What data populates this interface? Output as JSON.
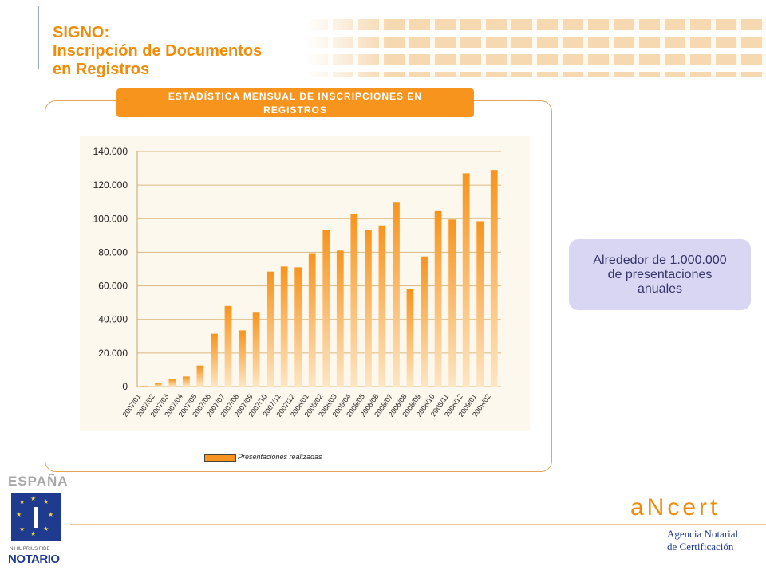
{
  "slide": {
    "title_line1": "SIGNO:",
    "title_line2": "Inscripción de Documentos",
    "title_line3": "en Registros"
  },
  "panel": {
    "header_line1": "ESTADÍSTICA MENSUAL DE INSCRIPCIONES EN",
    "header_line2": "REGISTROS"
  },
  "callout": {
    "line1": "Alrededor de 1.000.000",
    "line2": "de presentaciones",
    "line3": "anuales"
  },
  "logos": {
    "left_country": "ESPAÑA",
    "left_motto": "NIHIL PRIUS FIDE",
    "left_name": "NOTARIO",
    "right_brand": "aNcert",
    "right_tag1": "Agencia Notarial",
    "right_tag2": "de Certificación"
  },
  "colors": {
    "accent": "#f7941d",
    "title": "#f08c0a",
    "callout_bg": "#d9d6f4"
  },
  "chart_data": {
    "type": "bar",
    "title": "",
    "xlabel": "",
    "ylabel": "",
    "ylim": [
      0,
      140000
    ],
    "yticks": [
      0,
      20000,
      40000,
      60000,
      80000,
      100000,
      120000,
      140000
    ],
    "ytick_labels": [
      "0",
      "20.000",
      "40.000",
      "60.000",
      "80.000",
      "100.000",
      "120.000",
      "140.000"
    ],
    "grid": true,
    "legend_position": "bottom",
    "categories": [
      "2007/01",
      "2007/02",
      "2007/03",
      "2007/04",
      "2007/05",
      "2007/06",
      "2007/07",
      "2007/08",
      "2007/09",
      "2007/10",
      "2007/11",
      "2007/12",
      "2008/01",
      "2008/02",
      "2008/03",
      "2008/04",
      "2008/05",
      "2008/06",
      "2008/07",
      "2008/08",
      "2008/09",
      "2008/10",
      "2008/11",
      "2008/12",
      "2009/01",
      "2009/02"
    ],
    "series": [
      {
        "name": "Presentaciones realizadas",
        "values": [
          500,
          2000,
          4500,
          6000,
          12500,
          31500,
          48000,
          33500,
          44500,
          68500,
          71500,
          71000,
          79500,
          93000,
          81000,
          103000,
          93500,
          96000,
          109500,
          58000,
          77500,
          104500,
          99500,
          127000,
          98500,
          129000
        ]
      }
    ]
  }
}
